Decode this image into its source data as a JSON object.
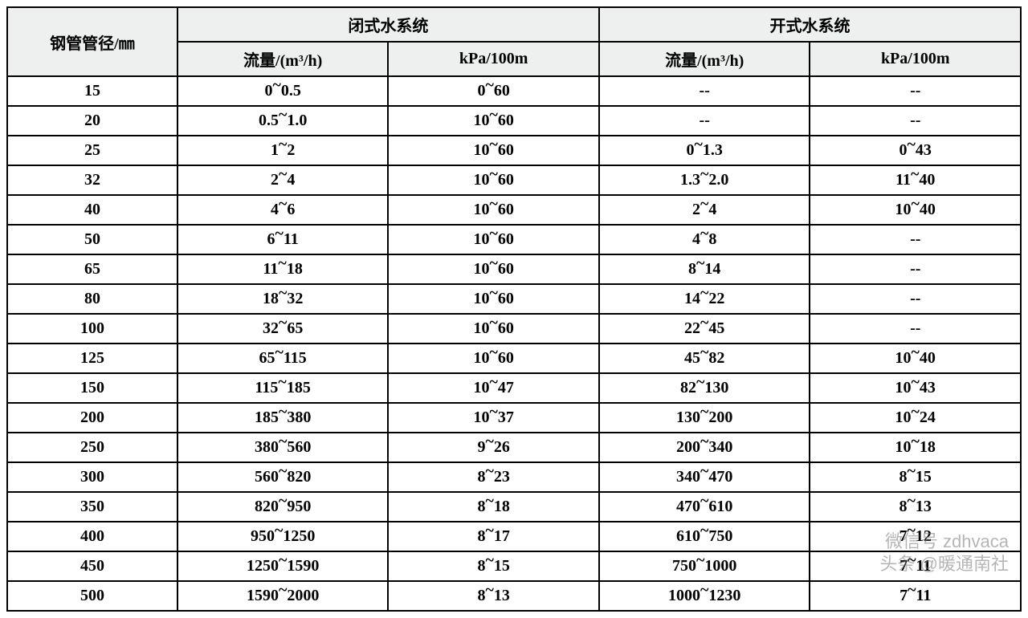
{
  "table": {
    "header": {
      "pipe_col": "钢管管径/㎜",
      "closed_system": "闭式水系统",
      "open_system": "开式水系统",
      "flow_label": "流量/(m³/h)",
      "kpa_label": "kPa/100m"
    },
    "rows": [
      {
        "pipe": "15",
        "closed_flow": "0~0.5",
        "closed_kpa": "0~60",
        "open_flow": "--",
        "open_kpa": "--"
      },
      {
        "pipe": "20",
        "closed_flow": "0.5~1.0",
        "closed_kpa": "10~60",
        "open_flow": "--",
        "open_kpa": "--"
      },
      {
        "pipe": "25",
        "closed_flow": "1~2",
        "closed_kpa": "10~60",
        "open_flow": "0~1.3",
        "open_kpa": "0~43"
      },
      {
        "pipe": "32",
        "closed_flow": "2~4",
        "closed_kpa": "10~60",
        "open_flow": "1.3~2.0",
        "open_kpa": "11~40"
      },
      {
        "pipe": "40",
        "closed_flow": "4~6",
        "closed_kpa": "10~60",
        "open_flow": "2~4",
        "open_kpa": "10~40"
      },
      {
        "pipe": "50",
        "closed_flow": "6~11",
        "closed_kpa": "10~60",
        "open_flow": "4~8",
        "open_kpa": "--"
      },
      {
        "pipe": "65",
        "closed_flow": "11~18",
        "closed_kpa": "10~60",
        "open_flow": "8~14",
        "open_kpa": "--"
      },
      {
        "pipe": "80",
        "closed_flow": "18~32",
        "closed_kpa": "10~60",
        "open_flow": "14~22",
        "open_kpa": "--"
      },
      {
        "pipe": "100",
        "closed_flow": "32~65",
        "closed_kpa": "10~60",
        "open_flow": "22~45",
        "open_kpa": "--"
      },
      {
        "pipe": "125",
        "closed_flow": "65~115",
        "closed_kpa": "10~60",
        "open_flow": "45~82",
        "open_kpa": "10~40"
      },
      {
        "pipe": "150",
        "closed_flow": "115~185",
        "closed_kpa": "10~47",
        "open_flow": "82~130",
        "open_kpa": "10~43"
      },
      {
        "pipe": "200",
        "closed_flow": "185~380",
        "closed_kpa": "10~37",
        "open_flow": "130~200",
        "open_kpa": "10~24"
      },
      {
        "pipe": "250",
        "closed_flow": "380~560",
        "closed_kpa": "9~26",
        "open_flow": "200~340",
        "open_kpa": "10~18"
      },
      {
        "pipe": "300",
        "closed_flow": "560~820",
        "closed_kpa": "8~23",
        "open_flow": "340~470",
        "open_kpa": "8~15"
      },
      {
        "pipe": "350",
        "closed_flow": "820~950",
        "closed_kpa": "8~18",
        "open_flow": "470~610",
        "open_kpa": "8~13"
      },
      {
        "pipe": "400",
        "closed_flow": "950~1250",
        "closed_kpa": "8~17",
        "open_flow": "610~750",
        "open_kpa": "7~12"
      },
      {
        "pipe": "450",
        "closed_flow": "1250~1590",
        "closed_kpa": "8~15",
        "open_flow": "750~1000",
        "open_kpa": "7~11"
      },
      {
        "pipe": "500",
        "closed_flow": "1590~2000",
        "closed_kpa": "8~13",
        "open_flow": "1000~1230",
        "open_kpa": "7~11"
      }
    ]
  },
  "watermark": {
    "line1": "微信号 zdhvaca",
    "line2": "头条 @暖通南社"
  },
  "style": {
    "header_bg": "#eef0ef",
    "border_color": "#000000",
    "font_size_cell": 20,
    "font_size_watermark": 22
  }
}
